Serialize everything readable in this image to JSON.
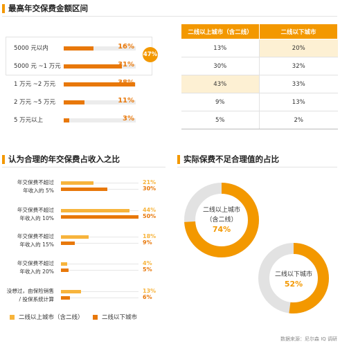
{
  "colors": {
    "accent": "#f39800",
    "orange_dark": "#e8780a",
    "orange_light": "#f7b43c",
    "ring_bg": "#e2e2e2",
    "table_highlight": "#fdf0d3"
  },
  "source": "数据来源：尼尔森 IQ 调研",
  "chart_data": [
    {
      "type": "bar",
      "title": "最高年交保费金额区间",
      "categories": [
        "5000 元以内",
        "5000 元 ~1 万元",
        "1 万元 ~2 万元",
        "2 万元 ~5 万元",
        "5 万元以上"
      ],
      "values": [
        16,
        31,
        38,
        11,
        3
      ],
      "value_labels": [
        "16%",
        "31%",
        "38%",
        "11%",
        "3%"
      ],
      "bracket_annotation": "47%",
      "xlim": [
        0,
        100
      ]
    },
    {
      "type": "table",
      "columns": [
        "二线以上城市（含二线）",
        "二线以下城市"
      ],
      "rows": [
        [
          "13%",
          "20%"
        ],
        [
          "30%",
          "32%"
        ],
        [
          "43%",
          "33%"
        ],
        [
          "9%",
          "13%"
        ],
        [
          "5%",
          "2%"
        ]
      ],
      "highlighted_cells": [
        [
          0,
          1
        ],
        [
          2,
          0
        ]
      ]
    },
    {
      "type": "bar",
      "title": "认为合理的年交保费占收入之比",
      "categories": [
        [
          "年交保费不超过",
          "年收入的 5%"
        ],
        [
          "年交保费不超过",
          "年收入的 10%"
        ],
        [
          "年交保费不超过",
          "年收入的 15%"
        ],
        [
          "年交保费不超过",
          "年收入的 20%"
        ],
        [
          "没想过，由保险销售",
          "/ 投保系统计算"
        ]
      ],
      "series": [
        {
          "name": "二线以上城市（含二线）",
          "values": [
            21,
            44,
            18,
            4,
            13
          ],
          "labels": [
            "21%",
            "44%",
            "18%",
            "4%",
            "13%"
          ],
          "color": "#f7b43c"
        },
        {
          "name": "二线以下城市",
          "values": [
            30,
            50,
            9,
            5,
            6
          ],
          "labels": [
            "30%",
            "50%",
            "9%",
            "5%",
            "6%"
          ],
          "color": "#e8780a"
        }
      ],
      "xlim": [
        0,
        50
      ],
      "legend": "bottom-left"
    },
    {
      "type": "pie",
      "title": "实际保费不足合理值的占比",
      "slices": [
        {
          "name_lines": [
            "二线以上城市",
            "（含二线）"
          ],
          "value": 74,
          "label": "74%"
        },
        {
          "name_lines": [
            "二线以下城市"
          ],
          "value": 52,
          "label": "52%"
        }
      ]
    }
  ]
}
